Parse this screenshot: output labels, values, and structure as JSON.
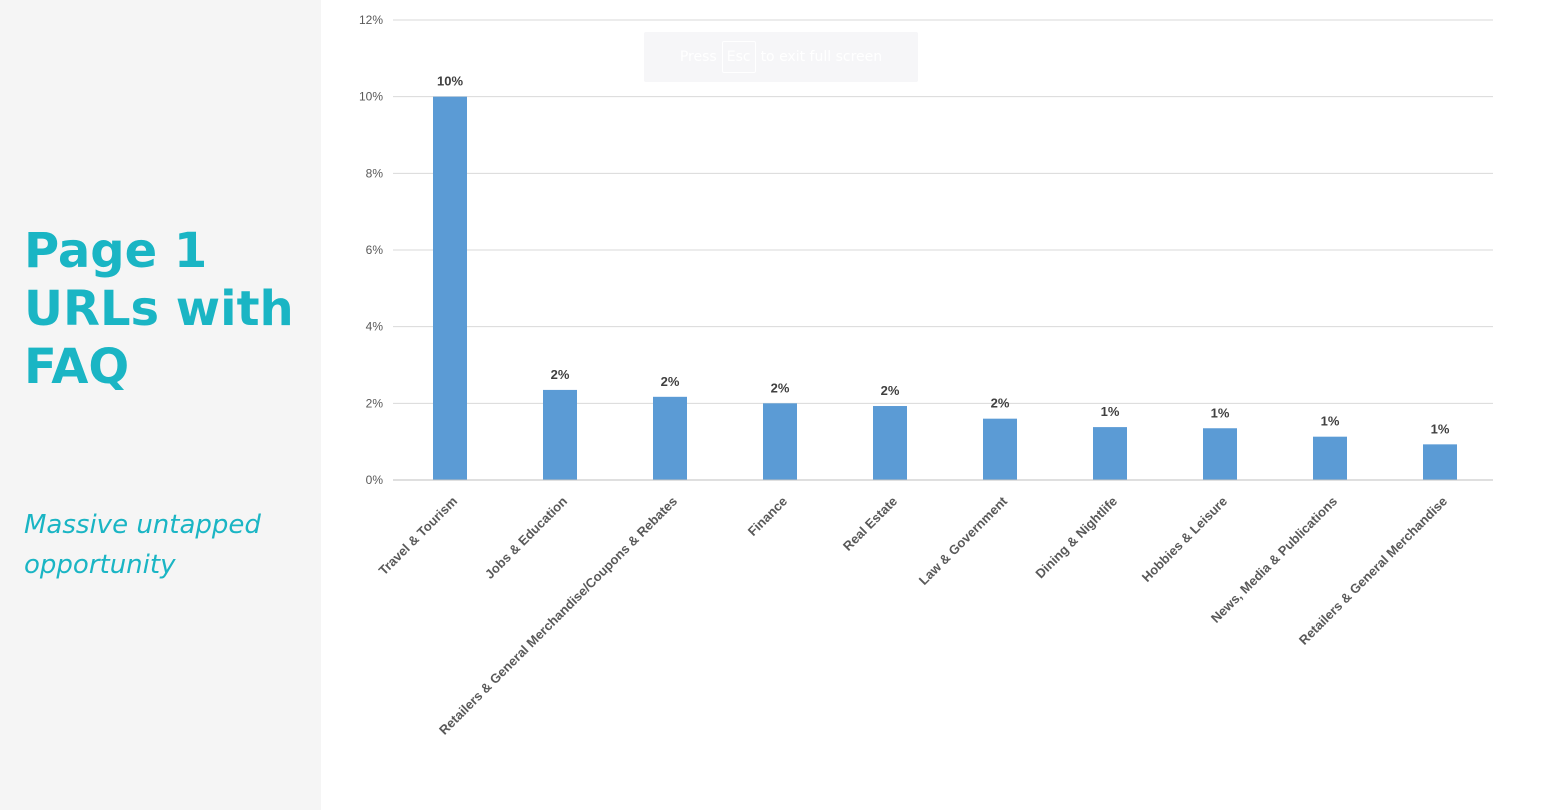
{
  "slide": {
    "title_lines": [
      "Page 1",
      "URLs with",
      "FAQ"
    ],
    "subtitle_lines": [
      "Massive untapped",
      "opportunity"
    ]
  },
  "fullscreen_notice": {
    "press": "Press",
    "key": "Esc",
    "suffix": "to exit full screen"
  },
  "colors": {
    "accent": "#1ab5c4",
    "bar": "#5b9bd5",
    "grid": "#d9d9d9",
    "panel_bg": "#f5f5f5"
  },
  "chart_data": {
    "type": "bar",
    "categories": [
      "Travel & Tourism",
      "Jobs & Education",
      "Retailers & General Merchandise/Coupons & Rebates",
      "Finance",
      "Real Estate",
      "Law & Government",
      "Dining & Nightlife",
      "Hobbies & Leisure",
      "News, Media & Publications",
      "Retailers & General Merchandise"
    ],
    "values": [
      10.0,
      2.35,
      2.17,
      2.0,
      1.93,
      1.6,
      1.38,
      1.35,
      1.13,
      0.93
    ],
    "data_labels": [
      "10%",
      "2%",
      "2%",
      "2%",
      "2%",
      "2%",
      "1%",
      "1%",
      "1%",
      "1%"
    ],
    "ylim": [
      0,
      12
    ],
    "yticks": [
      0,
      2,
      4,
      6,
      8,
      10,
      12
    ],
    "ytick_labels": [
      "0%",
      "2%",
      "4%",
      "6%",
      "8%",
      "10%",
      "12%"
    ],
    "grid": true,
    "legend": "none"
  }
}
